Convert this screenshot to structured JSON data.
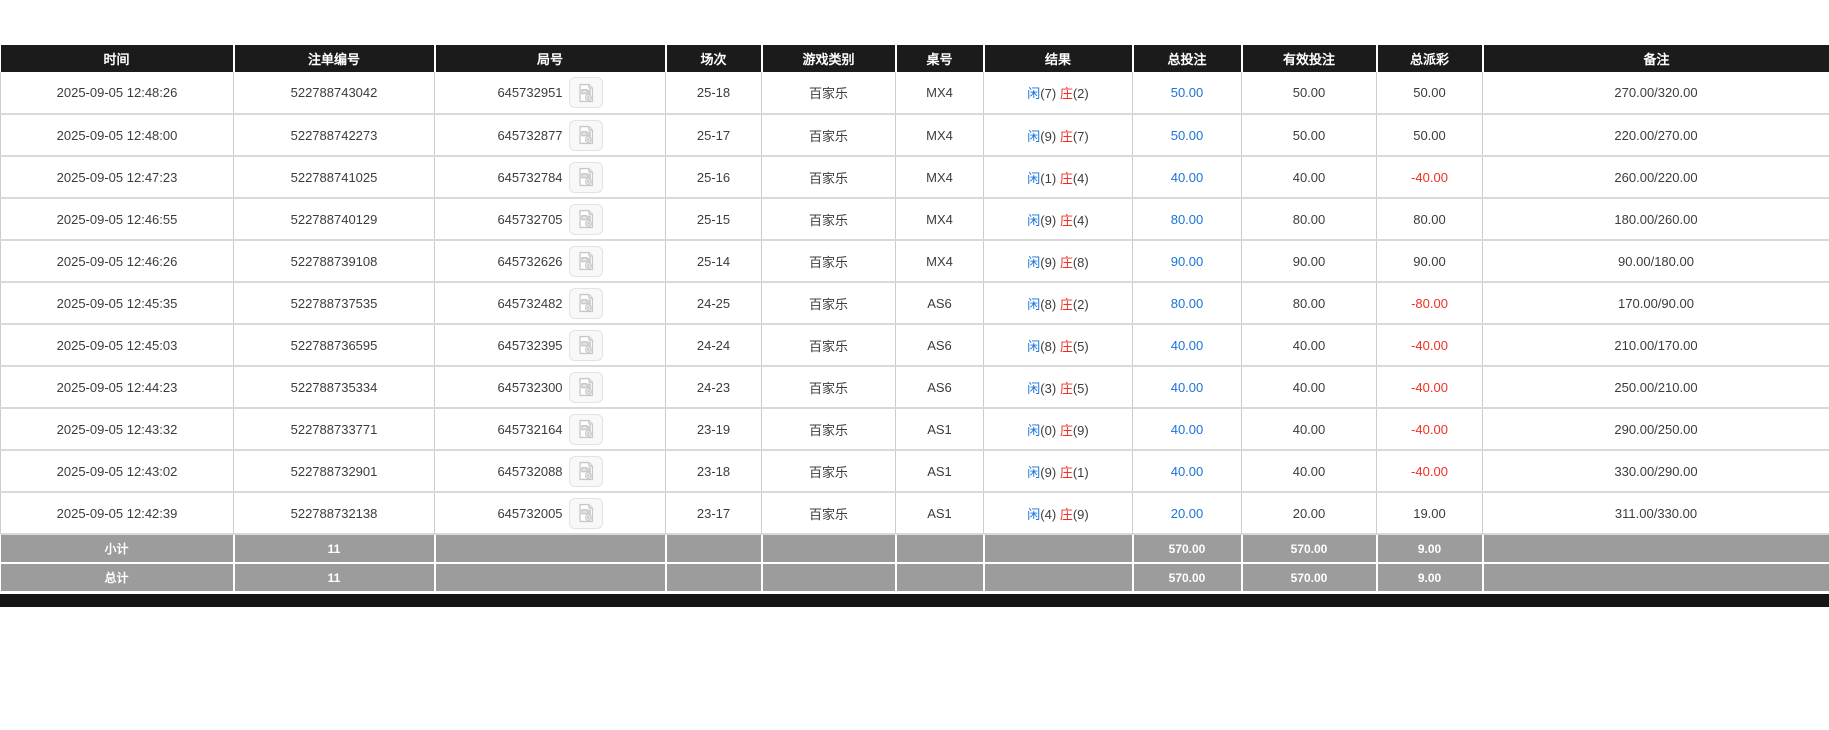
{
  "table": {
    "columns": [
      "时间",
      "注单编号",
      "局号",
      "场次",
      "游戏类别",
      "桌号",
      "结果",
      "总投注",
      "有效投注",
      "总派彩",
      "备注"
    ],
    "result_labels": {
      "player": "闲",
      "banker": "庄"
    },
    "rows": [
      {
        "time": "2025-09-05 12:48:26",
        "bet_id": "522788743042",
        "round_id": "645732951",
        "session": "25-18",
        "game": "百家乐",
        "table_no": "MX4",
        "player": "7",
        "banker": "2",
        "total_bet": "50.00",
        "valid_bet": "50.00",
        "payout": "50.00",
        "remark": "270.00/320.00"
      },
      {
        "time": "2025-09-05 12:48:00",
        "bet_id": "522788742273",
        "round_id": "645732877",
        "session": "25-17",
        "game": "百家乐",
        "table_no": "MX4",
        "player": "9",
        "banker": "7",
        "total_bet": "50.00",
        "valid_bet": "50.00",
        "payout": "50.00",
        "remark": "220.00/270.00"
      },
      {
        "time": "2025-09-05 12:47:23",
        "bet_id": "522788741025",
        "round_id": "645732784",
        "session": "25-16",
        "game": "百家乐",
        "table_no": "MX4",
        "player": "1",
        "banker": "4",
        "total_bet": "40.00",
        "valid_bet": "40.00",
        "payout": "-40.00",
        "remark": "260.00/220.00"
      },
      {
        "time": "2025-09-05 12:46:55",
        "bet_id": "522788740129",
        "round_id": "645732705",
        "session": "25-15",
        "game": "百家乐",
        "table_no": "MX4",
        "player": "9",
        "banker": "4",
        "total_bet": "80.00",
        "valid_bet": "80.00",
        "payout": "80.00",
        "remark": "180.00/260.00"
      },
      {
        "time": "2025-09-05 12:46:26",
        "bet_id": "522788739108",
        "round_id": "645732626",
        "session": "25-14",
        "game": "百家乐",
        "table_no": "MX4",
        "player": "9",
        "banker": "8",
        "total_bet": "90.00",
        "valid_bet": "90.00",
        "payout": "90.00",
        "remark": "90.00/180.00"
      },
      {
        "time": "2025-09-05 12:45:35",
        "bet_id": "522788737535",
        "round_id": "645732482",
        "session": "24-25",
        "game": "百家乐",
        "table_no": "AS6",
        "player": "8",
        "banker": "2",
        "total_bet": "80.00",
        "valid_bet": "80.00",
        "payout": "-80.00",
        "remark": "170.00/90.00"
      },
      {
        "time": "2025-09-05 12:45:03",
        "bet_id": "522788736595",
        "round_id": "645732395",
        "session": "24-24",
        "game": "百家乐",
        "table_no": "AS6",
        "player": "8",
        "banker": "5",
        "total_bet": "40.00",
        "valid_bet": "40.00",
        "payout": "-40.00",
        "remark": "210.00/170.00"
      },
      {
        "time": "2025-09-05 12:44:23",
        "bet_id": "522788735334",
        "round_id": "645732300",
        "session": "24-23",
        "game": "百家乐",
        "table_no": "AS6",
        "player": "3",
        "banker": "5",
        "total_bet": "40.00",
        "valid_bet": "40.00",
        "payout": "-40.00",
        "remark": "250.00/210.00"
      },
      {
        "time": "2025-09-05 12:43:32",
        "bet_id": "522788733771",
        "round_id": "645732164",
        "session": "23-19",
        "game": "百家乐",
        "table_no": "AS1",
        "player": "0",
        "banker": "9",
        "total_bet": "40.00",
        "valid_bet": "40.00",
        "payout": "-40.00",
        "remark": "290.00/250.00"
      },
      {
        "time": "2025-09-05 12:43:02",
        "bet_id": "522788732901",
        "round_id": "645732088",
        "session": "23-18",
        "game": "百家乐",
        "table_no": "AS1",
        "player": "9",
        "banker": "1",
        "total_bet": "40.00",
        "valid_bet": "40.00",
        "payout": "-40.00",
        "remark": "330.00/290.00"
      },
      {
        "time": "2025-09-05 12:42:39",
        "bet_id": "522788732138",
        "round_id": "645732005",
        "session": "23-17",
        "game": "百家乐",
        "table_no": "AS1",
        "player": "4",
        "banker": "9",
        "total_bet": "20.00",
        "valid_bet": "20.00",
        "payout": "19.00",
        "remark": "311.00/330.00"
      }
    ],
    "subtotal": {
      "label": "小计",
      "count": "11",
      "total_bet": "570.00",
      "valid_bet": "570.00",
      "payout": "9.00"
    },
    "total": {
      "label": "总计",
      "count": "11",
      "total_bet": "570.00",
      "valid_bet": "570.00",
      "payout": "9.00"
    }
  },
  "icons": {
    "round_video": "video-file-icon"
  },
  "colors": {
    "header_bg": "#1b1b1b",
    "header_text": "#ffffff",
    "link_blue": "#1a73d9",
    "result_player_blue": "#1a73d9",
    "result_banker_red": "#ee3124",
    "negative_red": "#ee3124",
    "summary_bg": "#9c9c9c",
    "summary_text": "#ffffff",
    "row_border": "#cccccc",
    "bottom_bar": "#161616"
  }
}
